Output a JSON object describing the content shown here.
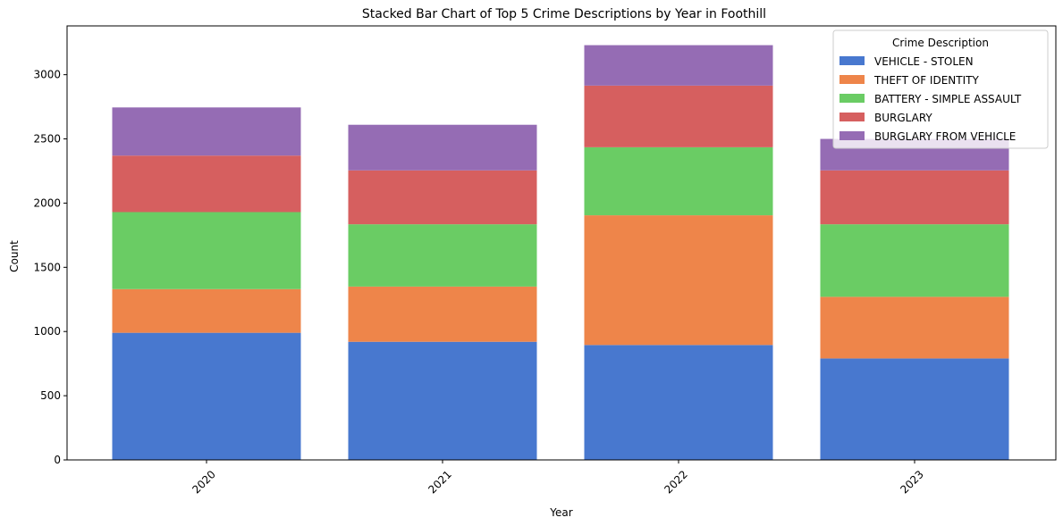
{
  "chart_data": {
    "type": "bar",
    "stacked": true,
    "title": "Stacked Bar Chart of Top 5 Crime Descriptions by Year in Foothill",
    "xlabel": "Year",
    "ylabel": "Count",
    "categories": [
      "2020",
      "2021",
      "2022",
      "2023"
    ],
    "ylim": [
      0,
      3380
    ],
    "yticks": [
      0,
      500,
      1000,
      1500,
      2000,
      2500,
      3000
    ],
    "x_tick_rotation_deg": 45,
    "grid": false,
    "legend": {
      "title": "Crime Description",
      "placement": "top-right"
    },
    "series": [
      {
        "name": "VEHICLE - STOLEN",
        "color": "#4878cf",
        "values": [
          990,
          920,
          895,
          790
        ]
      },
      {
        "name": "THEFT OF IDENTITY",
        "color": "#ee854a",
        "values": [
          340,
          430,
          1010,
          480
        ]
      },
      {
        "name": "BATTERY - SIMPLE ASSAULT",
        "color": "#6acc64",
        "values": [
          600,
          485,
          530,
          565
        ]
      },
      {
        "name": "BURGLARY",
        "color": "#d65f5f",
        "values": [
          440,
          420,
          480,
          420
        ]
      },
      {
        "name": "BURGLARY FROM VEHICLE",
        "color": "#956cb4",
        "values": [
          375,
          355,
          315,
          245
        ]
      }
    ]
  }
}
